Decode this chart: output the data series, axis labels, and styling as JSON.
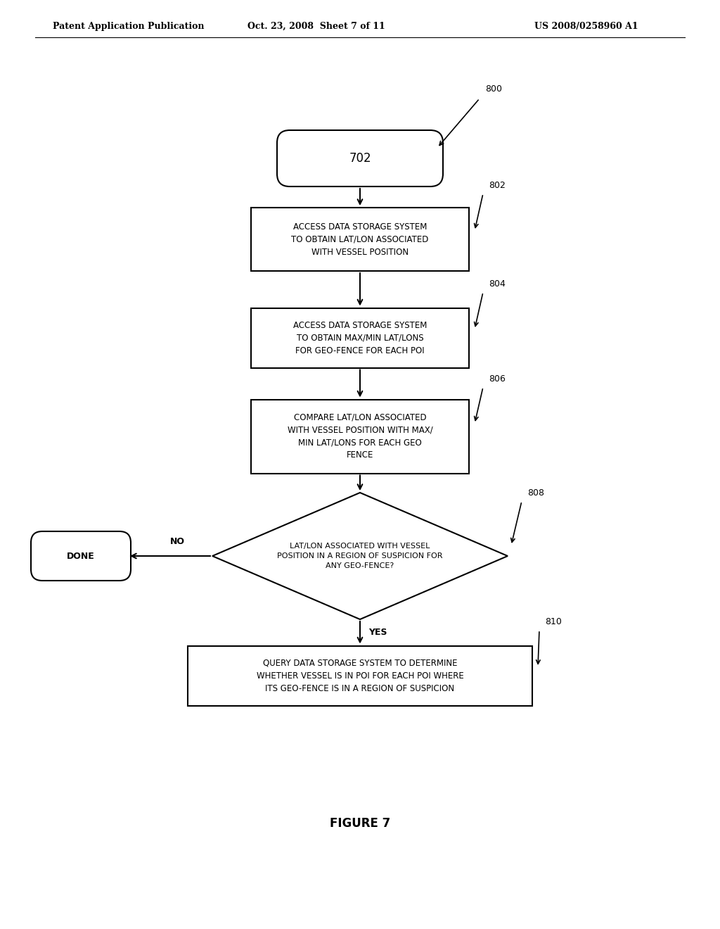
{
  "bg_color": "#ffffff",
  "header_left": "Patent Application Publication",
  "header_mid": "Oct. 23, 2008  Sheet 7 of 11",
  "header_right": "US 2008/0258960 A1",
  "figure_label": "FIGURE 7",
  "start_label": "702",
  "ref_800": "800",
  "ref_802": "802",
  "ref_804": "804",
  "ref_806": "806",
  "ref_808": "808",
  "ref_810": "810",
  "box802_text": "ACCESS DATA STORAGE SYSTEM\nTO OBTAIN LAT/LON ASSOCIATED\nWITH VESSEL POSITION",
  "box804_text": "ACCESS DATA STORAGE SYSTEM\nTO OBTAIN MAX/MIN LAT/LONS\nFOR GEO-FENCE FOR EACH POI",
  "box806_text": "COMPARE LAT/LON ASSOCIATED\nWITH VESSEL POSITION WITH MAX/\nMIN LAT/LONS FOR EACH GEO\nFENCE",
  "diamond808_text": "LAT/LON ASSOCIATED WITH VESSEL\nPOSITION IN A REGION OF SUSPICION FOR\nANY GEO-FENCE?",
  "box810_text": "QUERY DATA STORAGE SYSTEM TO DETERMINE\nWHETHER VESSEL IS IN POI FOR EACH POI WHERE\nITS GEO-FENCE IS IN A REGION OF SUSPICION",
  "done_text": "DONE",
  "yes_label": "YES",
  "no_label": "NO"
}
